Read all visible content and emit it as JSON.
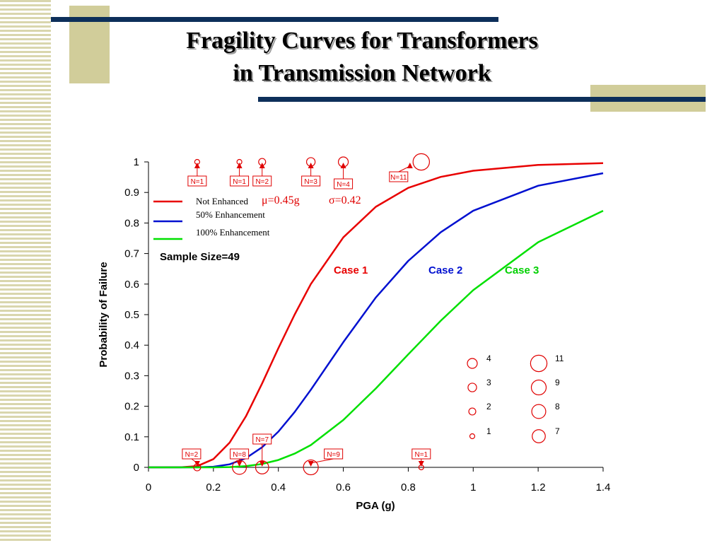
{
  "title": [
    "Fragility Curves for Transformers",
    "in Transmission Network"
  ],
  "chart_data": {
    "type": "line",
    "x_label": "PGA (g)",
    "y_label": "Probability of Failure",
    "x": [
      0,
      0.1,
      0.15,
      0.2,
      0.25,
      0.3,
      0.35,
      0.4,
      0.45,
      0.5,
      0.6,
      0.7,
      0.8,
      0.9,
      1.0,
      1.2,
      1.4
    ],
    "series": [
      {
        "name": "Not Enhanced",
        "color": "#e80000",
        "values": [
          0,
          0.0002,
          0.004,
          0.027,
          0.081,
          0.167,
          0.275,
          0.39,
          0.5,
          0.6,
          0.753,
          0.853,
          0.915,
          0.951,
          0.971,
          0.99,
          0.996
        ]
      },
      {
        "name": "50% Enhancement",
        "color": "#0010d0",
        "values": [
          0,
          0,
          0.0002,
          0.002,
          0.01,
          0.03,
          0.066,
          0.117,
          0.181,
          0.254,
          0.41,
          0.556,
          0.676,
          0.77,
          0.84,
          0.922,
          0.963
        ]
      },
      {
        "name": "100% Enhancement",
        "color": "#00e000",
        "values": [
          0,
          0,
          0,
          0.0001,
          0.001,
          0.004,
          0.011,
          0.024,
          0.045,
          0.073,
          0.155,
          0.258,
          0.37,
          0.48,
          0.58,
          0.737,
          0.84
        ]
      }
    ],
    "xlim": [
      0,
      1.4
    ],
    "ylim": [
      0,
      1
    ],
    "xticks": [
      0,
      0.2,
      0.4,
      0.6,
      0.8,
      1,
      1.2,
      1.4
    ],
    "yticks": [
      0,
      0.1,
      0.2,
      0.3,
      0.4,
      0.5,
      0.6,
      0.7,
      0.8,
      0.9,
      1
    ],
    "grid": false,
    "mu_label": "μ=0.45g",
    "sigma_label": "σ=0.42",
    "sample_size_label": "Sample Size=49",
    "case_labels": [
      "Case 1",
      "Case 2",
      "Case 3"
    ],
    "observations": [
      {
        "y": 1,
        "color": "#e00000",
        "x": [
          0.15,
          0.28,
          0.35,
          0.5,
          0.6,
          0.84
        ],
        "values": [
          1,
          1,
          2,
          3,
          4,
          11
        ],
        "value_labels": [
          "N=1",
          "N=1",
          "N=2",
          "N=3",
          "N=4",
          "N=11"
        ]
      },
      {
        "y": 0,
        "color": "#e00000",
        "x": [
          0.15,
          0.28,
          0.35,
          0.5,
          0.84
        ],
        "values": [
          2,
          8,
          7,
          9,
          1
        ],
        "value_labels": [
          "N=2",
          "N=8",
          "N=7",
          "N=9",
          "N=1"
        ]
      }
    ],
    "size_legend": [
      4,
      3,
      2,
      1,
      11,
      9,
      8,
      7
    ]
  }
}
